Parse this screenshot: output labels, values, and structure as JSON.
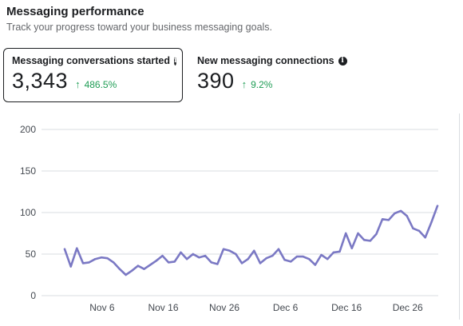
{
  "header": {
    "title": "Messaging performance",
    "subtitle": "Track your progress toward your business messaging goals."
  },
  "metrics": [
    {
      "label": "Messaging conversations started",
      "value": "3,343",
      "delta": "486.5%",
      "delta_icon": "up-arrow-icon",
      "selected": true
    },
    {
      "label": "New messaging connections",
      "value": "390",
      "delta": "9.2%",
      "delta_icon": "up-arrow-icon",
      "selected": false
    }
  ],
  "colors": {
    "line": "#7b79c4",
    "delta_positive": "#1f9d55",
    "grid": "#dadde1"
  },
  "chart_data": {
    "type": "line",
    "title": "",
    "xlabel": "",
    "ylabel": "",
    "ylim": [
      0,
      200
    ],
    "yticks": [
      "0",
      "50",
      "100",
      "150",
      "200"
    ],
    "xticks": [
      "Nov 6",
      "Nov 16",
      "Nov 26",
      "Dec 6",
      "Dec 16",
      "Dec 26"
    ],
    "x_start": "Oct 31",
    "x_tick_positions": [
      "Nov 6",
      "Nov 16",
      "Nov 26",
      "Dec 6",
      "Dec 16",
      "Dec 26"
    ],
    "grid": true,
    "series": [
      {
        "name": "",
        "values": [
          56,
          35,
          57,
          39,
          40,
          44,
          46,
          45,
          40,
          32,
          25,
          30,
          36,
          32,
          37,
          42,
          48,
          40,
          41,
          52,
          44,
          50,
          46,
          48,
          40,
          38,
          56,
          54,
          50,
          39,
          44,
          54,
          39,
          45,
          48,
          56,
          43,
          41,
          47,
          47,
          44,
          37,
          49,
          44,
          52,
          53,
          75,
          57,
          75,
          67,
          66,
          74,
          92,
          91,
          99,
          102,
          96,
          81,
          78,
          70,
          88,
          108
        ]
      }
    ]
  }
}
